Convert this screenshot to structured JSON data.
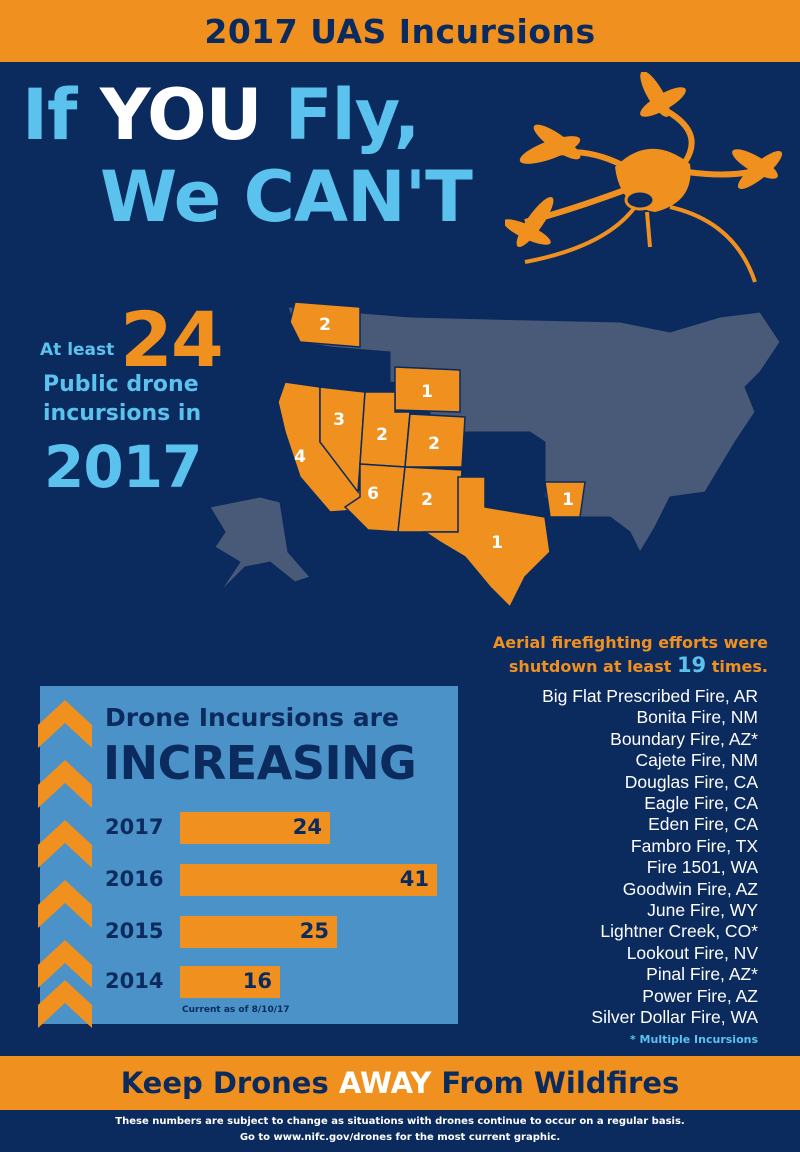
{
  "header": {
    "title": "2017 UAS Incursions"
  },
  "hero": {
    "part1": "If ",
    "you": "YOU",
    "part2": " Fly,",
    "line2": "We CAN'T"
  },
  "stat": {
    "at_least": "At least",
    "count": "24",
    "line1": "Public drone",
    "line2": "incursions in",
    "year": "2017"
  },
  "map": {
    "states": [
      {
        "abbr": "WA",
        "count": "2"
      },
      {
        "abbr": "WY",
        "count": "1"
      },
      {
        "abbr": "NV",
        "count": "3"
      },
      {
        "abbr": "UT",
        "count": "2"
      },
      {
        "abbr": "CO",
        "count": "2"
      },
      {
        "abbr": "CA",
        "count": "4"
      },
      {
        "abbr": "AZ",
        "count": "6"
      },
      {
        "abbr": "NM",
        "count": "2"
      },
      {
        "abbr": "TX",
        "count": "1"
      },
      {
        "abbr": "AR",
        "count": "1"
      }
    ],
    "colors": {
      "highlight": "#f0901e",
      "base": "#485a78"
    }
  },
  "aerial": {
    "line1": "Aerial firefighting efforts were",
    "line2_pre": "shutdown at least ",
    "count": "19",
    "line2_post": " times."
  },
  "chart_data": {
    "type": "bar",
    "title": "Drone Incursions are",
    "subtitle": "INCREASING",
    "categories": [
      "2017",
      "2016",
      "2015",
      "2014"
    ],
    "values": [
      24,
      41,
      25,
      16
    ],
    "xlim": [
      0,
      41
    ],
    "note": "Current as of 8/10/17"
  },
  "fires": [
    "Big Flat Prescribed Fire, AR",
    "Bonita Fire, NM",
    "Boundary Fire, AZ*",
    "Cajete Fire, NM",
    "Douglas Fire, CA",
    "Eagle Fire, CA",
    "Eden Fire, CA",
    "Fambro Fire, TX",
    "Fire 1501, WA",
    "Goodwin Fire, AZ",
    "June Fire, WY",
    "Lightner Creek, CO*",
    "Lookout Fire, NV",
    "Pinal Fire, AZ*",
    "Power Fire, AZ",
    "Silver Dollar Fire, WA"
  ],
  "fires_note": "* Multiple Incursions",
  "footer": {
    "pre": "Keep Drones ",
    "away": "AWAY",
    "post": " From Wildfires",
    "note1": "These numbers are subject to change as situations with drones continue to occur on a regular basis.",
    "note2": "Go to www.nifc.gov/drones for the most current graphic."
  },
  "colors": {
    "navy": "#0b2a5e",
    "orange": "#f0901e",
    "light_blue": "#5bc2ee",
    "panel_blue": "#4a92c7"
  }
}
